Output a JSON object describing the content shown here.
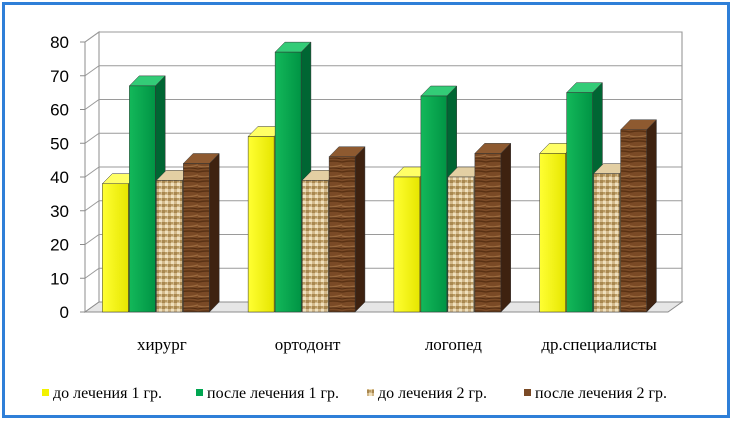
{
  "chart_data": {
    "type": "bar",
    "title": "",
    "xlabel": "",
    "ylabel": "",
    "ylim": [
      0,
      80
    ],
    "yticks": [
      0,
      10,
      20,
      30,
      40,
      50,
      60,
      70,
      80
    ],
    "categories": [
      "хирург",
      "ортодонт",
      "логопед",
      "др.специалисты"
    ],
    "series": [
      {
        "name": "до лечения 1 гр.",
        "values": [
          38,
          52,
          40,
          47
        ],
        "color": "#f2f200",
        "style": "solid"
      },
      {
        "name": "после лечения 1 гр.",
        "values": [
          67,
          77,
          64,
          65
        ],
        "color": "#00a651",
        "style": "solid"
      },
      {
        "name": "до лечения 2 гр.",
        "values": [
          39,
          39,
          40,
          41
        ],
        "color": "#c9ad7a",
        "style": "burlap"
      },
      {
        "name": "после лечения 2 гр.",
        "values": [
          44,
          46,
          47,
          54
        ],
        "color": "#7a4a26",
        "style": "wood"
      }
    ],
    "grid": true,
    "legend": "bottom"
  }
}
